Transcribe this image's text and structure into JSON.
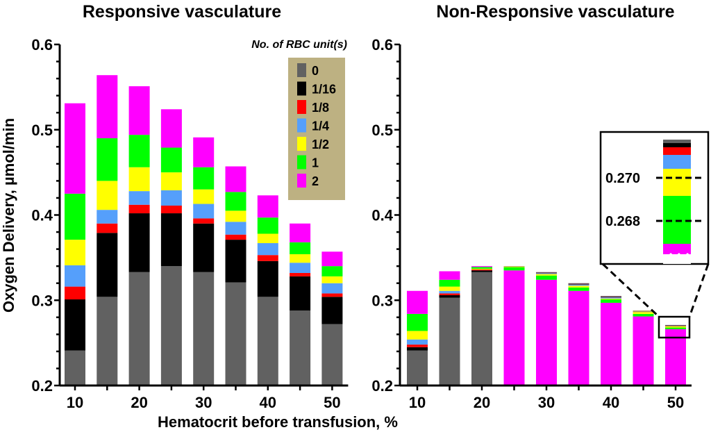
{
  "chart_data": [
    {
      "type": "bar",
      "stacked": true,
      "title": "Responsive vasculature",
      "xlabel": "Hematocrit before transfusion, %",
      "ylabel": "Oxygen Delivery, µmol/min",
      "ylim": [
        0.2,
        0.6
      ],
      "yticks": [
        "0.2",
        "0.3",
        "0.4",
        "0.5",
        "0.6"
      ],
      "xticks": [
        "10",
        "20",
        "30",
        "40",
        "50"
      ],
      "categories": [
        10,
        15,
        20,
        25,
        30,
        35,
        40,
        45,
        50
      ],
      "legend_title": "No. of RBC unit(s)",
      "legend_placement": "top-right",
      "series": [
        {
          "name": "0",
          "color": "#616161",
          "tops": [
            0.241,
            0.304,
            0.333,
            0.34,
            0.333,
            0.321,
            0.304,
            0.288,
            0.272
          ]
        },
        {
          "name": "1/16",
          "color": "#000000",
          "tops": [
            0.301,
            0.379,
            0.402,
            0.402,
            0.39,
            0.371,
            0.346,
            0.328,
            0.304
          ]
        },
        {
          "name": "1/8",
          "color": "#ff0000",
          "tops": [
            0.316,
            0.39,
            0.412,
            0.411,
            0.396,
            0.377,
            0.353,
            0.332,
            0.308
          ]
        },
        {
          "name": "1/4",
          "color": "#559ffb",
          "tops": [
            0.341,
            0.406,
            0.428,
            0.429,
            0.413,
            0.392,
            0.367,
            0.344,
            0.32
          ]
        },
        {
          "name": "1/2",
          "color": "#ffff00",
          "tops": [
            0.371,
            0.44,
            0.456,
            0.45,
            0.43,
            0.405,
            0.378,
            0.354,
            0.328
          ]
        },
        {
          "name": "1",
          "color": "#00ff00",
          "tops": [
            0.425,
            0.49,
            0.494,
            0.479,
            0.456,
            0.427,
            0.397,
            0.368,
            0.34
          ]
        },
        {
          "name": "2",
          "color": "#ff00ff",
          "tops": [
            0.531,
            0.564,
            0.551,
            0.524,
            0.491,
            0.457,
            0.423,
            0.39,
            0.357
          ]
        }
      ]
    },
    {
      "type": "bar",
      "stacked": true,
      "title": "Non-Responsive vasculature",
      "xlabel": "Hematocrit before transfusion, %",
      "ylim": [
        0.2,
        0.6
      ],
      "yticks": [
        "0.2",
        "0.3",
        "0.4",
        "0.5",
        "0.6"
      ],
      "xticks": [
        "10",
        "20",
        "30",
        "40",
        "50"
      ],
      "categories": [
        10,
        15,
        20,
        25,
        30,
        35,
        40,
        45,
        50
      ],
      "series": [
        {
          "name": "0",
          "color": "#616161",
          "tops": [
            0.241,
            0.303,
            0.333,
            0.2,
            0.2,
            0.2,
            0.2,
            0.2,
            0.2
          ]
        },
        {
          "name": "1/16",
          "color": "#000000",
          "tops": [
            0.245,
            0.306,
            0.335,
            0.2,
            0.2,
            0.2,
            0.2,
            0.2,
            0.2
          ]
        },
        {
          "name": "1/8",
          "color": "#ff0000",
          "tops": [
            0.248,
            0.308,
            0.336,
            0.2,
            0.2,
            0.2,
            0.2,
            0.2,
            0.2
          ]
        },
        {
          "name": "1/4",
          "color": "#559ffb",
          "tops": [
            0.254,
            0.311,
            0.336,
            0.2,
            0.2,
            0.2,
            0.2,
            0.2,
            0.2
          ]
        },
        {
          "name": "1/2",
          "color": "#ffff00",
          "tops": [
            0.264,
            0.316,
            0.337,
            0.2,
            0.2,
            0.2,
            0.2,
            0.2,
            0.2
          ]
        },
        {
          "name": "1",
          "color": "#00ff00",
          "tops": [
            0.284,
            0.324,
            0.339,
            0.2,
            0.2,
            0.2,
            0.2,
            0.2,
            0.2
          ]
        },
        {
          "name": "2",
          "color": "#ff00ff",
          "tops": [
            0.311,
            0.334,
            0.34,
            0.335,
            0.324,
            0.311,
            0.297,
            0.281,
            0.266
          ]
        }
      ],
      "thin_top_layers": [
        {
          "category": 25,
          "layers": [
            [
              "#00ff00",
              0.339
            ],
            [
              "#ffff00",
              0.3395
            ],
            [
              "#aaa066",
              0.34
            ]
          ]
        },
        {
          "category": 30,
          "layers": [
            [
              "#00ff00",
              0.329
            ],
            [
              "#ffff00",
              0.331
            ],
            [
              "#559ffb",
              0.3315
            ],
            [
              "#6b4d5a",
              0.333
            ]
          ]
        },
        {
          "category": 35,
          "layers": [
            [
              "#00ff00",
              0.315
            ],
            [
              "#ffff00",
              0.317
            ],
            [
              "#559ffb",
              0.318
            ],
            [
              "#6b4d5a",
              0.32
            ]
          ]
        },
        {
          "category": 40,
          "layers": [
            [
              "#00ff00",
              0.301
            ],
            [
              "#ffff00",
              0.302
            ],
            [
              "#559ffb",
              0.303
            ],
            [
              "#6b4d5a",
              0.305
            ]
          ]
        },
        {
          "category": 45,
          "layers": [
            [
              "#00ff00",
              0.284
            ],
            [
              "#ffff00",
              0.286
            ],
            [
              "#aaa066",
              0.288
            ]
          ]
        },
        {
          "category": 50,
          "layers": [
            [
              "#00ff00",
              0.268
            ],
            [
              "#ffff00",
              0.2695
            ],
            [
              "#6b4d5a",
              0.271
            ]
          ]
        }
      ],
      "inset": {
        "labels": [
          "0.270",
          "0.268"
        ],
        "stack_colors": [
          "#ff00ff",
          "#00ff00",
          "#ffff00",
          "#559ffb",
          "#ff0000",
          "#000000",
          "#616161"
        ]
      }
    }
  ]
}
